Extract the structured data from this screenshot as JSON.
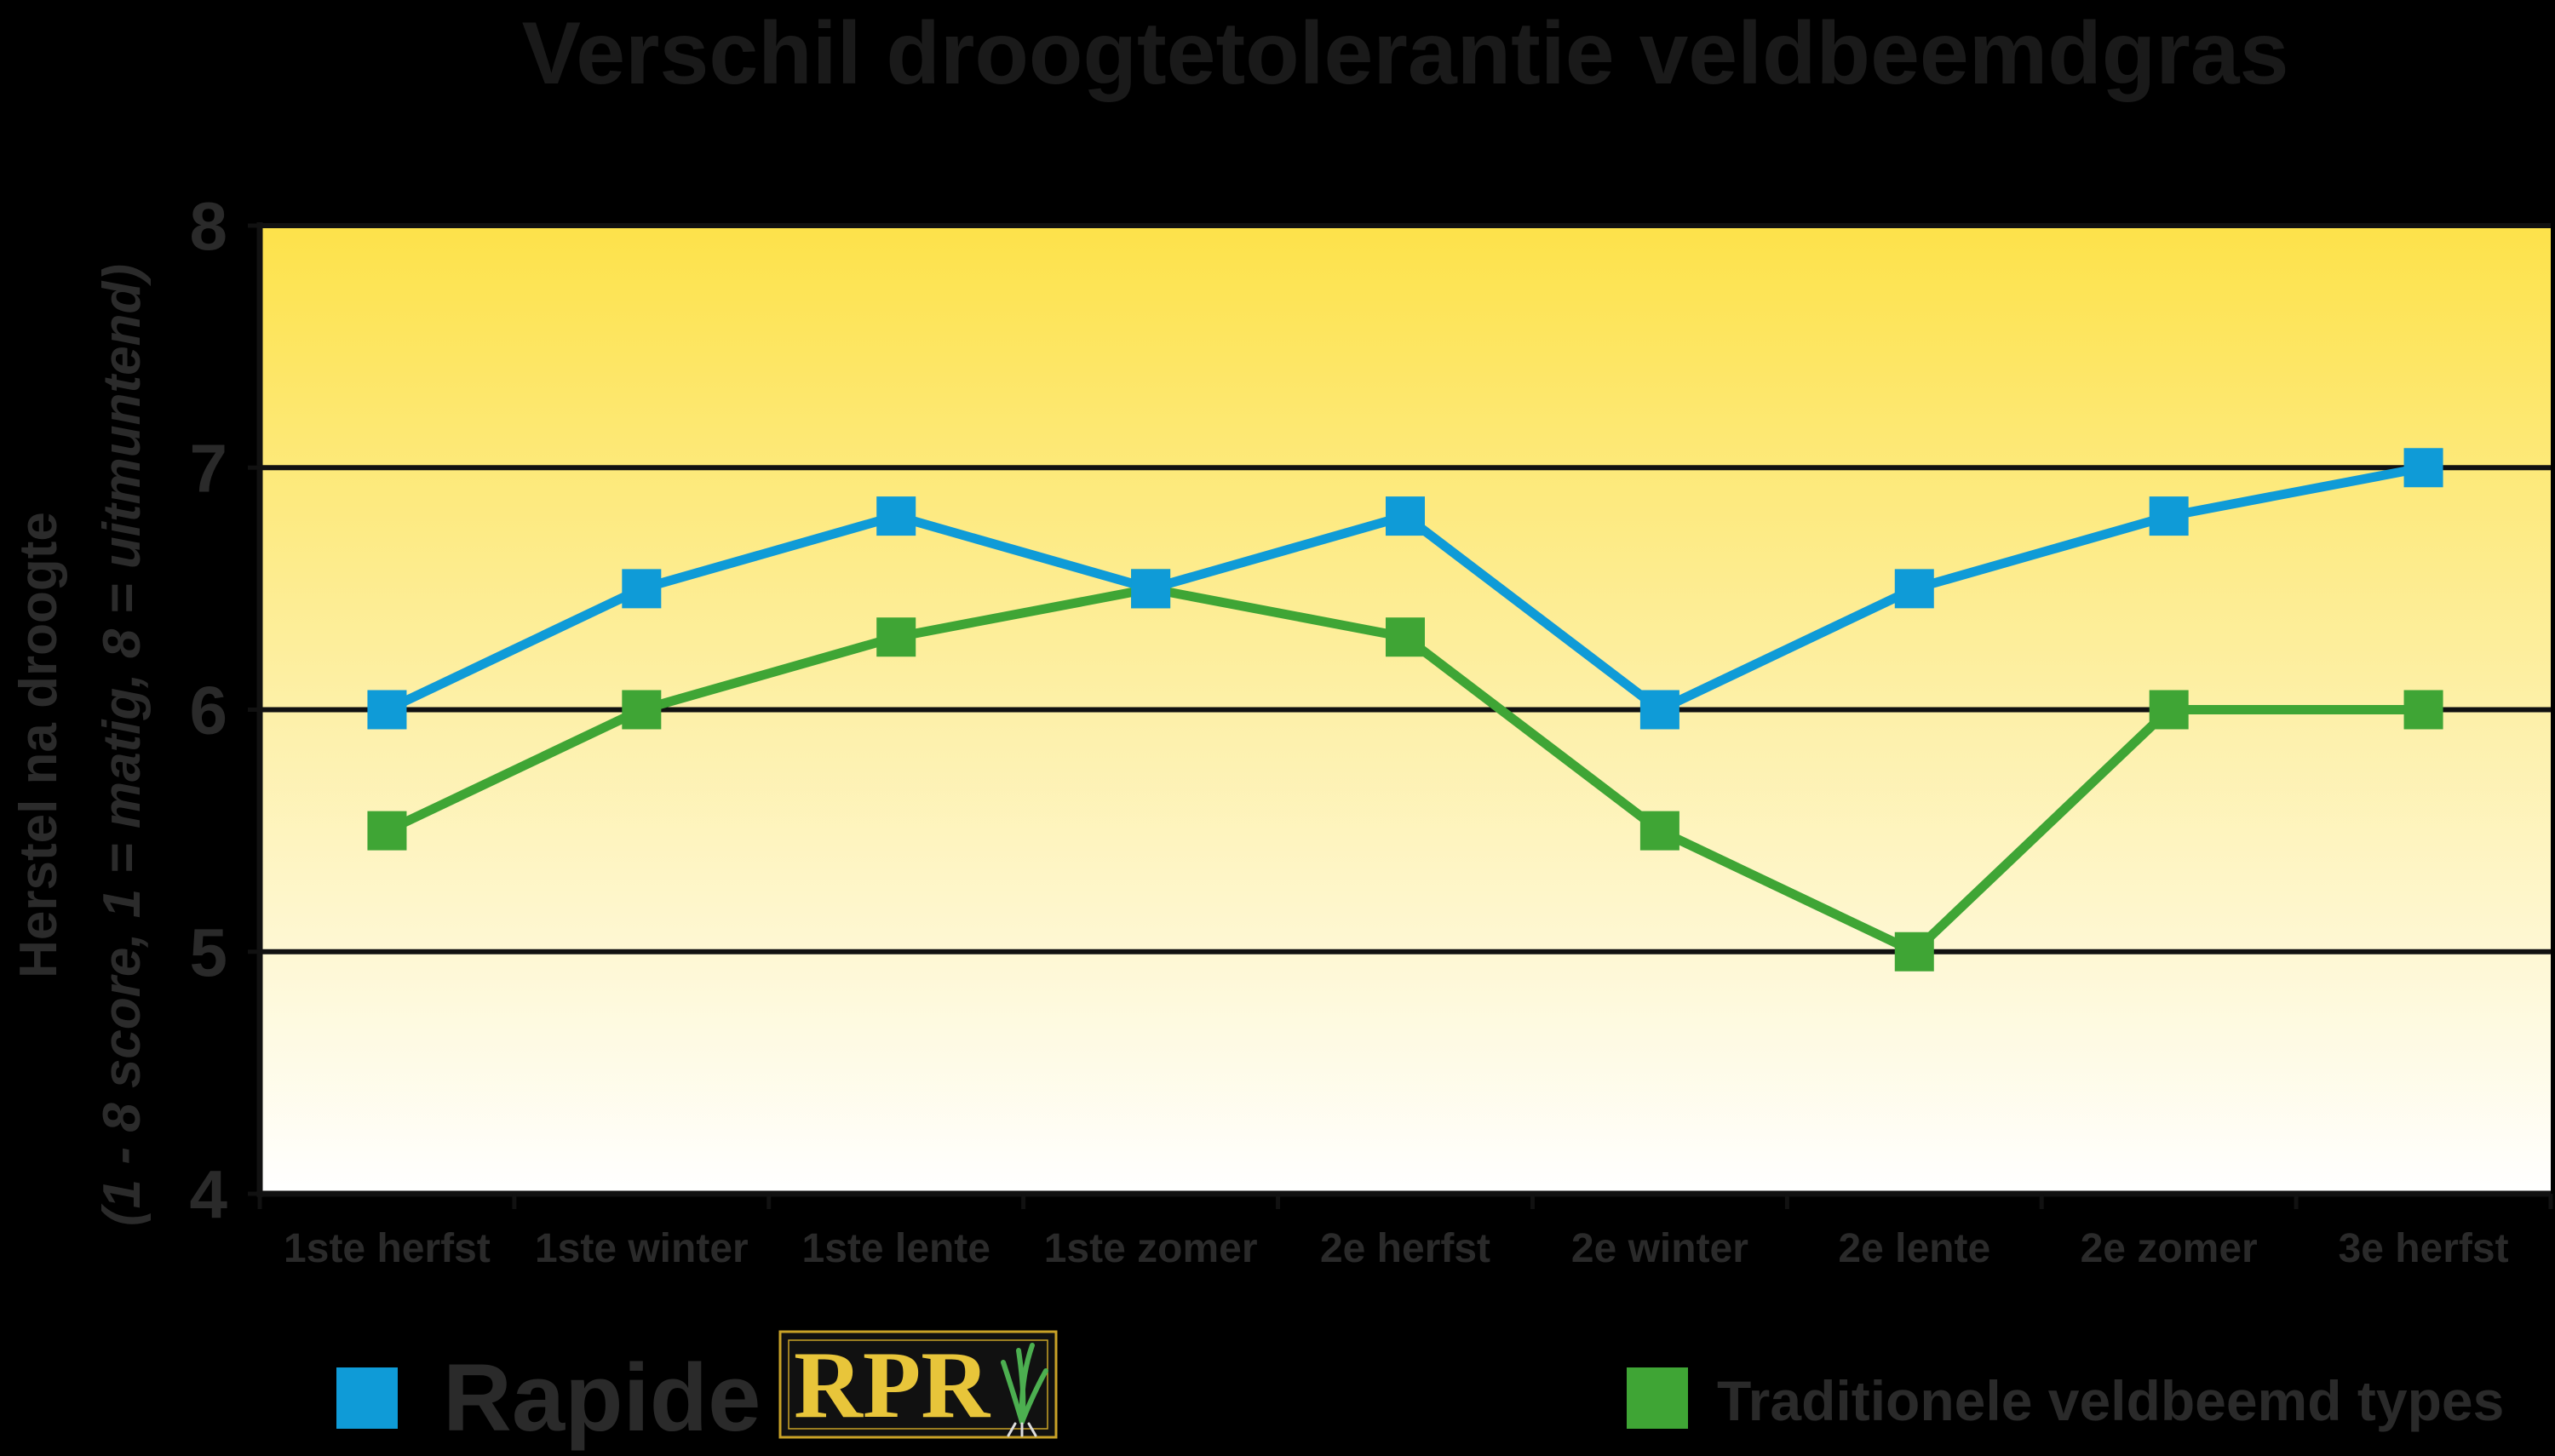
{
  "chart_data": {
    "type": "line",
    "title": "Verschil droogtetolerantie veldbeemdgras",
    "ylabel": "Herstel na droogte",
    "ylabel_sub": "(1 - 8 score, 1 = matig, 8 = uitmuntend)",
    "xlabel": "",
    "ylim": [
      4,
      8
    ],
    "yticks": [
      "4",
      "5",
      "6",
      "7",
      "8"
    ],
    "categories": [
      "1ste herfst",
      "1ste winter",
      "1ste lente",
      "1ste zomer",
      "2e herfst",
      "2e winter",
      "2e lente",
      "2e zomer",
      "3e herfst"
    ],
    "grid": "horizontal",
    "series": [
      {
        "name": "Rapide",
        "color": "#0f9bd7",
        "values": [
          6.0,
          6.5,
          6.8,
          6.5,
          6.8,
          6.0,
          6.5,
          6.8,
          7.0
        ]
      },
      {
        "name": "Traditionele veldbeemd types",
        "color": "#3fa535",
        "values": [
          5.5,
          6.0,
          6.3,
          6.5,
          6.3,
          5.5,
          5.0,
          6.0,
          6.0
        ]
      }
    ],
    "legend": {
      "placement": "bottom",
      "logo_text": "RPR"
    }
  }
}
